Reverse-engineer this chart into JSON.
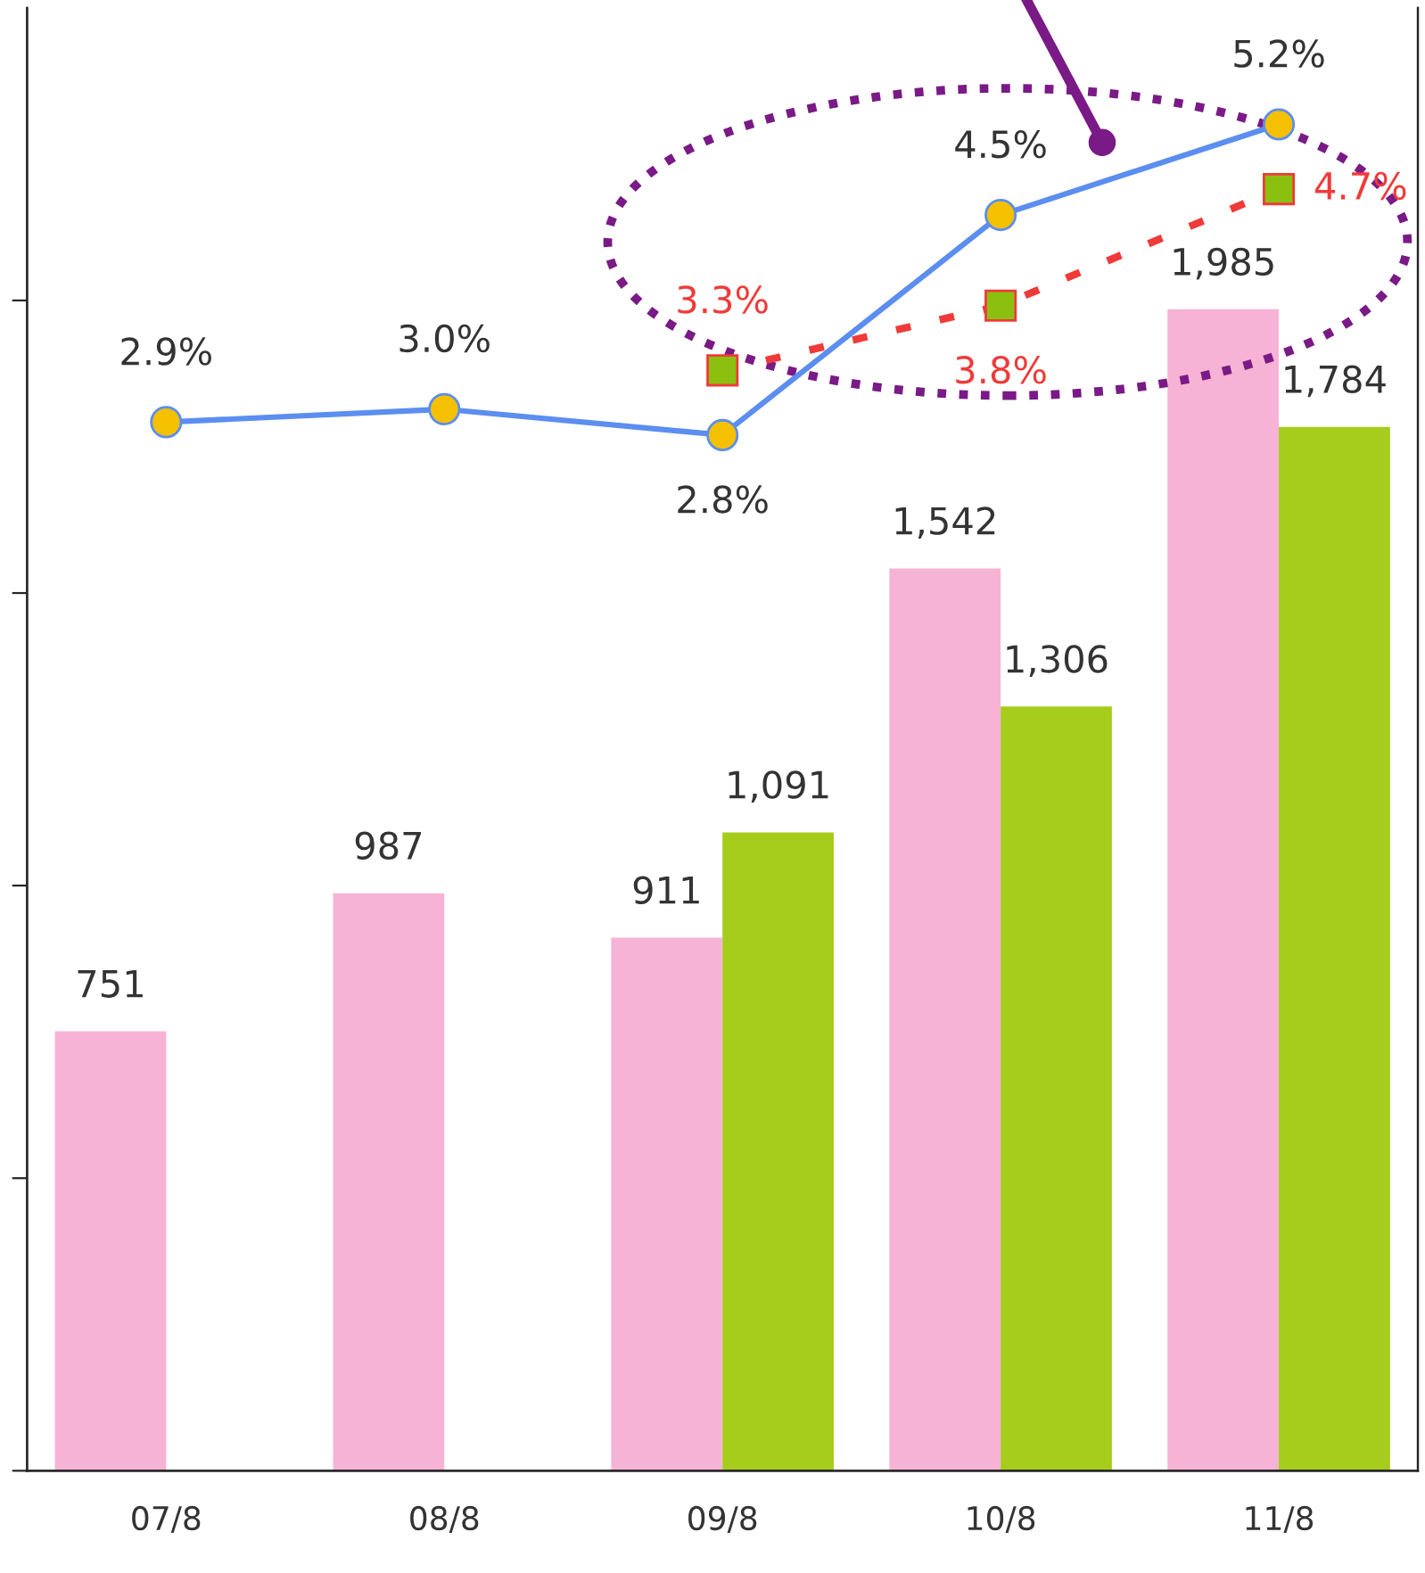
{
  "chart_data": {
    "type": "bar",
    "categories": [
      "07/8",
      "08/8",
      "09/8",
      "10/8",
      "11/8"
    ],
    "series": [
      {
        "color": "#f7b3d5",
        "values": [
          751,
          987,
          911,
          1542,
          1985
        ],
        "value_labels": [
          "751",
          "987",
          "911",
          "1,542",
          "1,985"
        ]
      },
      {
        "color": "#a6cc1c",
        "values": [
          null,
          null,
          1091,
          1306,
          1784
        ],
        "value_labels": [
          null,
          null,
          "1,091",
          "1,306",
          "1,784"
        ]
      },
      {
        "type": "line",
        "axis": "y2",
        "color": "#5b8ef0",
        "marker": "circle",
        "line_style": "solid",
        "values": [
          2.9,
          3.0,
          2.8,
          4.5,
          5.2
        ],
        "value_labels": [
          "2.9%",
          "3.0%",
          "2.8%",
          "4.5%",
          "5.2%"
        ]
      },
      {
        "type": "line",
        "axis": "y2",
        "color": "#f03a3a",
        "marker": "square",
        "line_style": "dotted",
        "values": [
          null,
          null,
          3.3,
          3.8,
          4.7
        ],
        "value_labels": [
          null,
          null,
          "3.3%",
          "3.8%",
          "4.7%"
        ]
      }
    ],
    "ylim": [
      0,
      2500
    ],
    "yticks": [
      {
        "value": 0,
        "label": null
      },
      {
        "value": 500,
        "label": null
      },
      {
        "value": 1000,
        "label": null
      },
      {
        "value": 1500,
        "label": null
      },
      {
        "value": 2000,
        "label": null
      }
    ],
    "y2lim": [
      -5.2,
      6.1
    ],
    "tick_labels": "x",
    "grid": false,
    "legend": false
  }
}
